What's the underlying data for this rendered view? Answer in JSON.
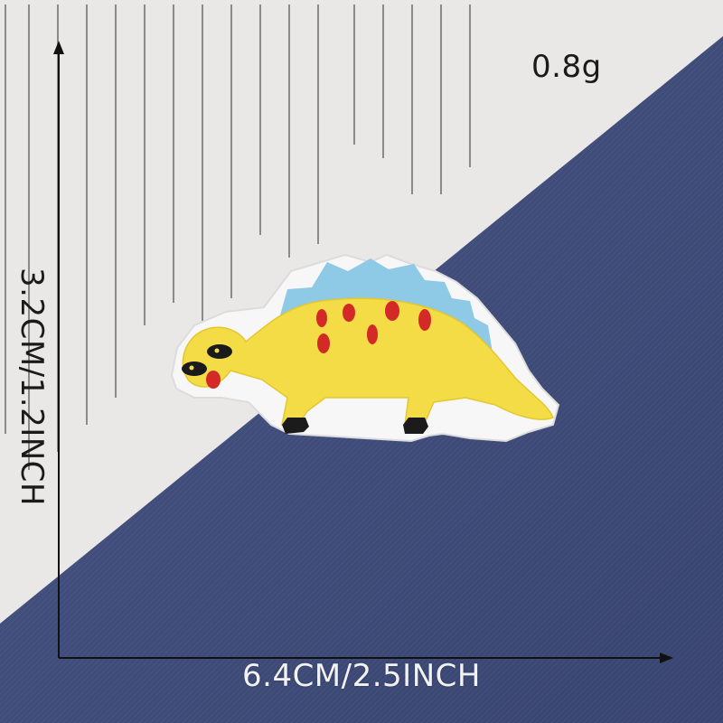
{
  "product": {
    "weight": "0.8g",
    "width_label": "6.4CM/2.5INCH",
    "height_label": "3.2CM/1.2INCH",
    "subject": "stegosaurus embroidered patch"
  },
  "colors": {
    "denim": "#3f4b78",
    "paper": "#e9e8e6",
    "patch_yellow": "#f3dc45",
    "spikes_blue": "#8ec9e6",
    "spots_red": "#d32a28",
    "patch_border": "#f7f7f7"
  }
}
